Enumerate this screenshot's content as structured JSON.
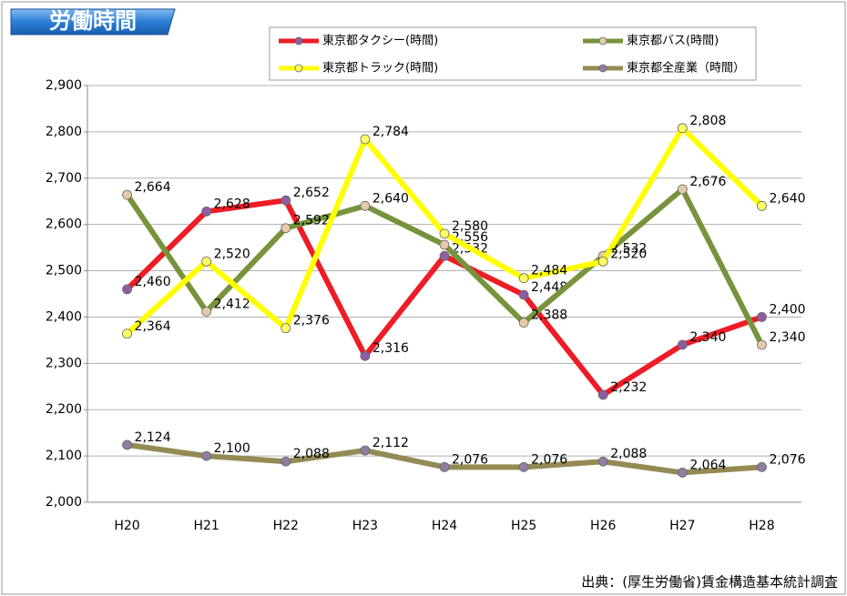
{
  "chart_data": {
    "type": "line",
    "title": "労働時間",
    "source": "出典：(厚生労働省)賃金構造基本統計調査",
    "categories": [
      "H20",
      "H21",
      "H22",
      "H23",
      "H24",
      "H25",
      "H26",
      "H27",
      "H28"
    ],
    "series": [
      {
        "name": "東京都タクシー(時間)",
        "color": "#ee1c25",
        "marker_color": "#8e5ea2",
        "values": [
          2460,
          2628,
          2652,
          2316,
          2532,
          2448,
          2232,
          2340,
          2400
        ],
        "value_labels": [
          "2,460",
          "2,628",
          "2,652",
          "2,316",
          "2,532",
          "2,448",
          "2,232",
          "2,340",
          "2,400"
        ]
      },
      {
        "name": "東京都バス(時間)",
        "color": "#77933c",
        "marker_color": "#e6c9a8",
        "values": [
          2664,
          2412,
          2592,
          2640,
          2556,
          2388,
          2532,
          2676,
          2340
        ],
        "value_labels": [
          "2,664",
          "2,412",
          "2,592",
          "2,640",
          "2,556",
          "2,388",
          "2,532",
          "2,676",
          "2,340"
        ]
      },
      {
        "name": "東京都トラック(時間)",
        "color": "#ffff00",
        "marker_color": "#ffff66",
        "values": [
          2364,
          2520,
          2376,
          2784,
          2580,
          2484,
          2520,
          2808,
          2640
        ],
        "value_labels": [
          "2,364",
          "2,520",
          "2,376",
          "2,784",
          "2,580",
          "2,484",
          "2,520",
          "2,808",
          "2,640"
        ]
      },
      {
        "name": "東京都全産業（時間）",
        "color": "#948a54",
        "marker_color": "#8e7ea2",
        "values": [
          2124,
          2100,
          2088,
          2112,
          2076,
          2076,
          2088,
          2064,
          2076
        ],
        "value_labels": [
          "2,124",
          "2,100",
          "2,088",
          "2,112",
          "2,076",
          "2,076",
          "2,088",
          "2,064",
          "2,076"
        ]
      }
    ],
    "ylim": [
      2000,
      2900
    ],
    "yticks": [
      {
        "value": 2000,
        "label": "2,000"
      },
      {
        "value": 2100,
        "label": "2,100"
      },
      {
        "value": 2200,
        "label": "2,200"
      },
      {
        "value": 2300,
        "label": "2,300"
      },
      {
        "value": 2400,
        "label": "2,400"
      },
      {
        "value": 2500,
        "label": "2,500"
      },
      {
        "value": 2600,
        "label": "2,600"
      },
      {
        "value": 2700,
        "label": "2,700"
      },
      {
        "value": 2800,
        "label": "2,800"
      },
      {
        "value": 2900,
        "label": "2,900"
      }
    ],
    "grid": true
  }
}
